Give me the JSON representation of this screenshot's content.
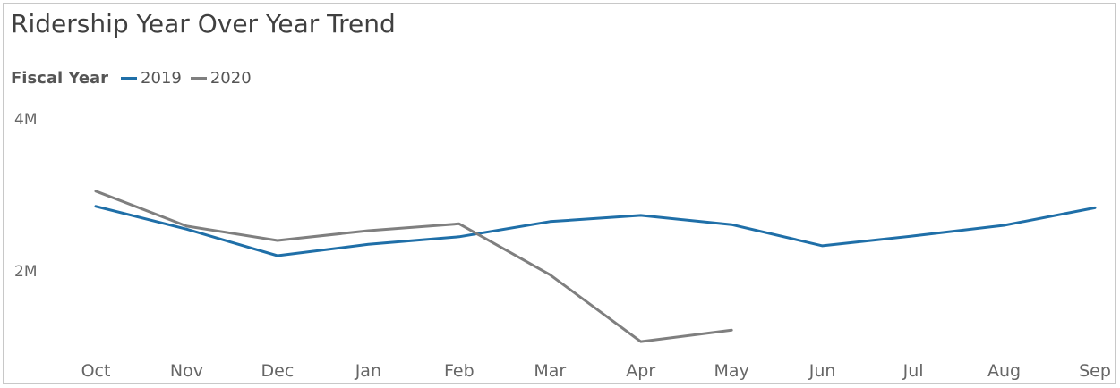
{
  "chart_data": {
    "type": "line",
    "title": "Ridership Year Over Year Trend",
    "legend_title": "Fiscal Year",
    "legend_position": "top-left",
    "categories": [
      "Oct",
      "Nov",
      "Dec",
      "Jan",
      "Feb",
      "Mar",
      "Apr",
      "May",
      "Jun",
      "Jul",
      "Aug",
      "Sep"
    ],
    "y_ticks": [
      {
        "label": "4M",
        "value": 4000000
      },
      {
        "label": "2M",
        "value": 2000000
      }
    ],
    "ylim": [
      0,
      4000000
    ],
    "grid": false,
    "series": [
      {
        "name": "2019",
        "color": "#1f6fa8",
        "values": [
          2850000,
          2550000,
          2200000,
          2350000,
          2450000,
          2650000,
          2730000,
          2610000,
          2330000,
          2460000,
          2600000,
          2830000
        ]
      },
      {
        "name": "2020",
        "color": "#7f7f7f",
        "values": [
          3050000,
          2590000,
          2400000,
          2530000,
          2620000,
          1950000,
          1070000,
          1220000,
          null,
          null,
          null,
          null
        ]
      }
    ]
  }
}
